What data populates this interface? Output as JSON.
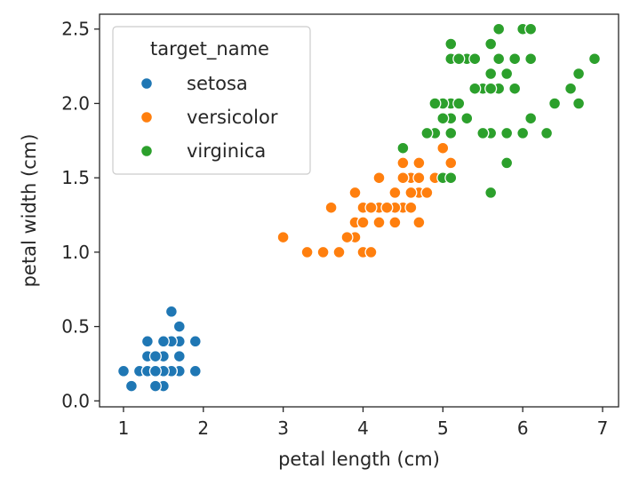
{
  "chart_data": {
    "type": "scatter",
    "xlabel": "petal length (cm)",
    "ylabel": "petal width (cm)",
    "xlim": [
      0.7,
      7.2
    ],
    "ylim": [
      -0.04,
      2.6
    ],
    "xticks": [
      1,
      2,
      3,
      4,
      5,
      6,
      7
    ],
    "yticks": [
      0.0,
      0.5,
      1.0,
      1.5,
      2.0,
      2.5
    ],
    "grid": false,
    "legend": {
      "title": "target_name",
      "placement": "top-left"
    },
    "series": [
      {
        "name": "setosa",
        "color": "#1f77b4",
        "points": [
          [
            1.4,
            0.2
          ],
          [
            1.4,
            0.2
          ],
          [
            1.3,
            0.2
          ],
          [
            1.5,
            0.2
          ],
          [
            1.4,
            0.2
          ],
          [
            1.7,
            0.4
          ],
          [
            1.4,
            0.3
          ],
          [
            1.5,
            0.2
          ],
          [
            1.4,
            0.2
          ],
          [
            1.5,
            0.1
          ],
          [
            1.5,
            0.2
          ],
          [
            1.6,
            0.2
          ],
          [
            1.4,
            0.1
          ],
          [
            1.1,
            0.1
          ],
          [
            1.2,
            0.2
          ],
          [
            1.5,
            0.4
          ],
          [
            1.3,
            0.4
          ],
          [
            1.4,
            0.3
          ],
          [
            1.7,
            0.3
          ],
          [
            1.5,
            0.3
          ],
          [
            1.7,
            0.2
          ],
          [
            1.5,
            0.4
          ],
          [
            1.0,
            0.2
          ],
          [
            1.7,
            0.5
          ],
          [
            1.9,
            0.2
          ],
          [
            1.6,
            0.2
          ],
          [
            1.6,
            0.4
          ],
          [
            1.5,
            0.2
          ],
          [
            1.4,
            0.2
          ],
          [
            1.6,
            0.2
          ],
          [
            1.6,
            0.2
          ],
          [
            1.5,
            0.4
          ],
          [
            1.5,
            0.1
          ],
          [
            1.4,
            0.2
          ],
          [
            1.5,
            0.2
          ],
          [
            1.2,
            0.2
          ],
          [
            1.3,
            0.2
          ],
          [
            1.4,
            0.1
          ],
          [
            1.3,
            0.2
          ],
          [
            1.5,
            0.2
          ],
          [
            1.3,
            0.3
          ],
          [
            1.3,
            0.3
          ],
          [
            1.3,
            0.2
          ],
          [
            1.6,
            0.6
          ],
          [
            1.9,
            0.4
          ],
          [
            1.4,
            0.3
          ],
          [
            1.6,
            0.2
          ],
          [
            1.4,
            0.2
          ],
          [
            1.5,
            0.2
          ],
          [
            1.4,
            0.2
          ]
        ]
      },
      {
        "name": "versicolor",
        "color": "#ff7f0e",
        "points": [
          [
            4.7,
            1.4
          ],
          [
            4.5,
            1.5
          ],
          [
            4.9,
            1.5
          ],
          [
            4.0,
            1.3
          ],
          [
            4.6,
            1.5
          ],
          [
            4.5,
            1.3
          ],
          [
            4.7,
            1.6
          ],
          [
            3.3,
            1.0
          ],
          [
            4.6,
            1.3
          ],
          [
            3.9,
            1.4
          ],
          [
            3.5,
            1.0
          ],
          [
            4.2,
            1.5
          ],
          [
            4.0,
            1.0
          ],
          [
            4.7,
            1.4
          ],
          [
            3.6,
            1.3
          ],
          [
            4.4,
            1.4
          ],
          [
            4.5,
            1.5
          ],
          [
            4.1,
            1.0
          ],
          [
            4.5,
            1.5
          ],
          [
            3.9,
            1.1
          ],
          [
            4.8,
            1.8
          ],
          [
            4.0,
            1.3
          ],
          [
            4.9,
            1.5
          ],
          [
            4.7,
            1.2
          ],
          [
            4.3,
            1.3
          ],
          [
            4.4,
            1.4
          ],
          [
            4.8,
            1.4
          ],
          [
            5.0,
            1.7
          ],
          [
            4.5,
            1.5
          ],
          [
            3.5,
            1.0
          ],
          [
            3.8,
            1.1
          ],
          [
            3.7,
            1.0
          ],
          [
            3.9,
            1.2
          ],
          [
            5.1,
            1.6
          ],
          [
            4.5,
            1.5
          ],
          [
            4.5,
            1.6
          ],
          [
            4.7,
            1.5
          ],
          [
            4.4,
            1.3
          ],
          [
            4.1,
            1.3
          ],
          [
            4.0,
            1.3
          ],
          [
            4.4,
            1.2
          ],
          [
            4.6,
            1.4
          ],
          [
            4.0,
            1.2
          ],
          [
            3.3,
            1.0
          ],
          [
            4.2,
            1.3
          ],
          [
            4.2,
            1.2
          ],
          [
            4.2,
            1.3
          ],
          [
            4.3,
            1.3
          ],
          [
            3.0,
            1.1
          ],
          [
            4.1,
            1.3
          ]
        ]
      },
      {
        "name": "virginica",
        "color": "#2ca02c",
        "points": [
          [
            6.0,
            2.5
          ],
          [
            5.1,
            1.9
          ],
          [
            5.9,
            2.1
          ],
          [
            5.6,
            1.8
          ],
          [
            5.8,
            2.2
          ],
          [
            6.6,
            2.1
          ],
          [
            4.5,
            1.7
          ],
          [
            6.3,
            1.8
          ],
          [
            5.8,
            1.8
          ],
          [
            6.1,
            2.5
          ],
          [
            5.1,
            2.0
          ],
          [
            5.3,
            1.9
          ],
          [
            5.5,
            2.1
          ],
          [
            5.0,
            2.0
          ],
          [
            5.1,
            2.4
          ],
          [
            5.3,
            2.3
          ],
          [
            5.5,
            1.8
          ],
          [
            6.7,
            2.2
          ],
          [
            6.9,
            2.3
          ],
          [
            5.0,
            1.5
          ],
          [
            5.7,
            2.3
          ],
          [
            4.9,
            2.0
          ],
          [
            6.7,
            2.0
          ],
          [
            4.9,
            1.8
          ],
          [
            5.7,
            2.1
          ],
          [
            6.0,
            1.8
          ],
          [
            4.8,
            1.8
          ],
          [
            4.9,
            1.8
          ],
          [
            5.6,
            2.1
          ],
          [
            5.8,
            1.6
          ],
          [
            6.1,
            1.9
          ],
          [
            6.4,
            2.0
          ],
          [
            5.6,
            2.2
          ],
          [
            5.1,
            1.5
          ],
          [
            5.6,
            1.4
          ],
          [
            6.1,
            2.3
          ],
          [
            5.6,
            2.4
          ],
          [
            5.5,
            1.8
          ],
          [
            4.8,
            1.8
          ],
          [
            5.4,
            2.1
          ],
          [
            5.6,
            2.4
          ],
          [
            5.1,
            2.3
          ],
          [
            5.1,
            1.9
          ],
          [
            5.9,
            2.3
          ],
          [
            5.7,
            2.5
          ],
          [
            5.2,
            2.3
          ],
          [
            5.0,
            1.9
          ],
          [
            5.2,
            2.0
          ],
          [
            5.4,
            2.3
          ],
          [
            5.1,
            1.8
          ]
        ]
      }
    ]
  }
}
